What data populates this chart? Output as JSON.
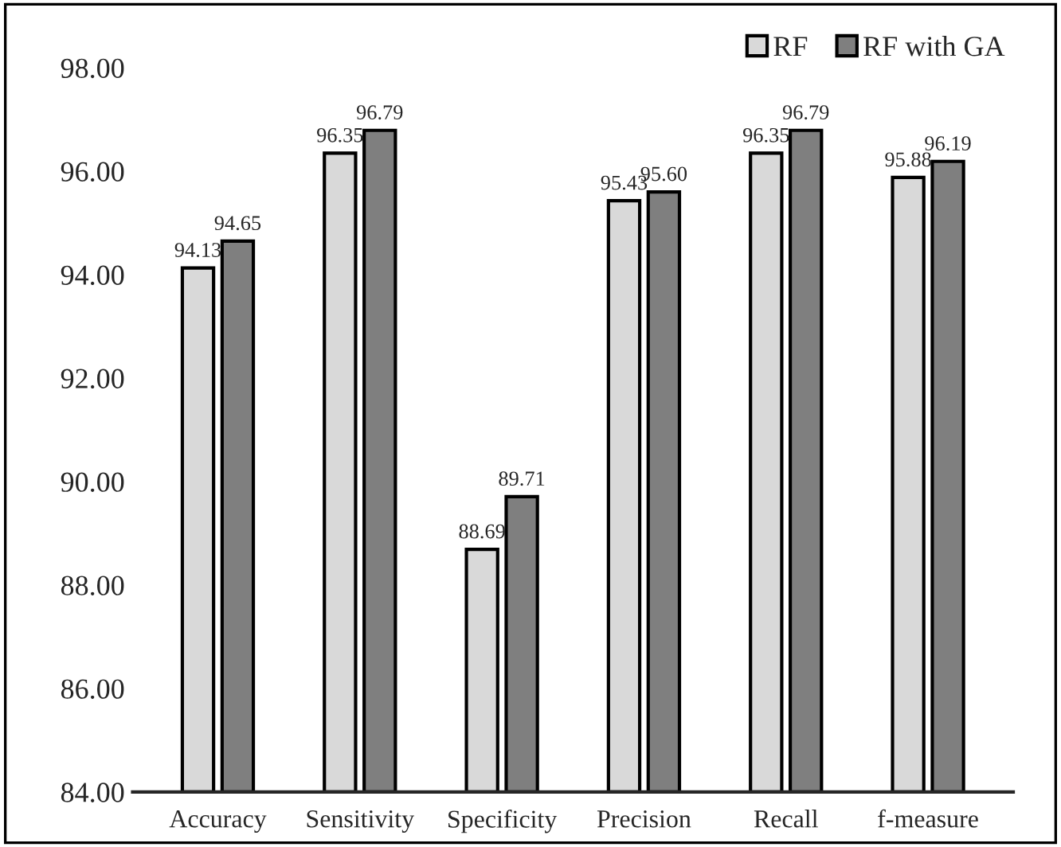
{
  "chart_data": {
    "type": "bar",
    "categories": [
      "Accuracy",
      "Sensitivity",
      "Specificity",
      "Precision",
      "Recall",
      "f-measure"
    ],
    "series": [
      {
        "name": "RF",
        "color": "#d9d9d9",
        "values": [
          94.13,
          96.35,
          88.69,
          95.43,
          96.35,
          95.88
        ]
      },
      {
        "name": "RF with GA",
        "color": "#7f7f7f",
        "values": [
          94.65,
          96.79,
          89.71,
          95.6,
          96.79,
          96.19
        ]
      }
    ],
    "ylim": [
      84,
      98
    ],
    "yticks": [
      {
        "value": 84,
        "label": "84.00"
      },
      {
        "value": 86,
        "label": "86.00"
      },
      {
        "value": 88,
        "label": "88.00"
      },
      {
        "value": 90,
        "label": "90.00"
      },
      {
        "value": 92,
        "label": "92.00"
      },
      {
        "value": 94,
        "label": "94.00"
      },
      {
        "value": 96,
        "label": "96.00"
      },
      {
        "value": 98,
        "label": "98.00"
      }
    ],
    "value_labels": [
      [
        "94.13",
        "96.35",
        "88.69",
        "95.43",
        "96.35",
        "95.88"
      ],
      [
        "94.65",
        "96.79",
        "89.71",
        "95.60",
        "96.79",
        "96.19"
      ]
    ],
    "grid": false,
    "legend": "top right"
  }
}
